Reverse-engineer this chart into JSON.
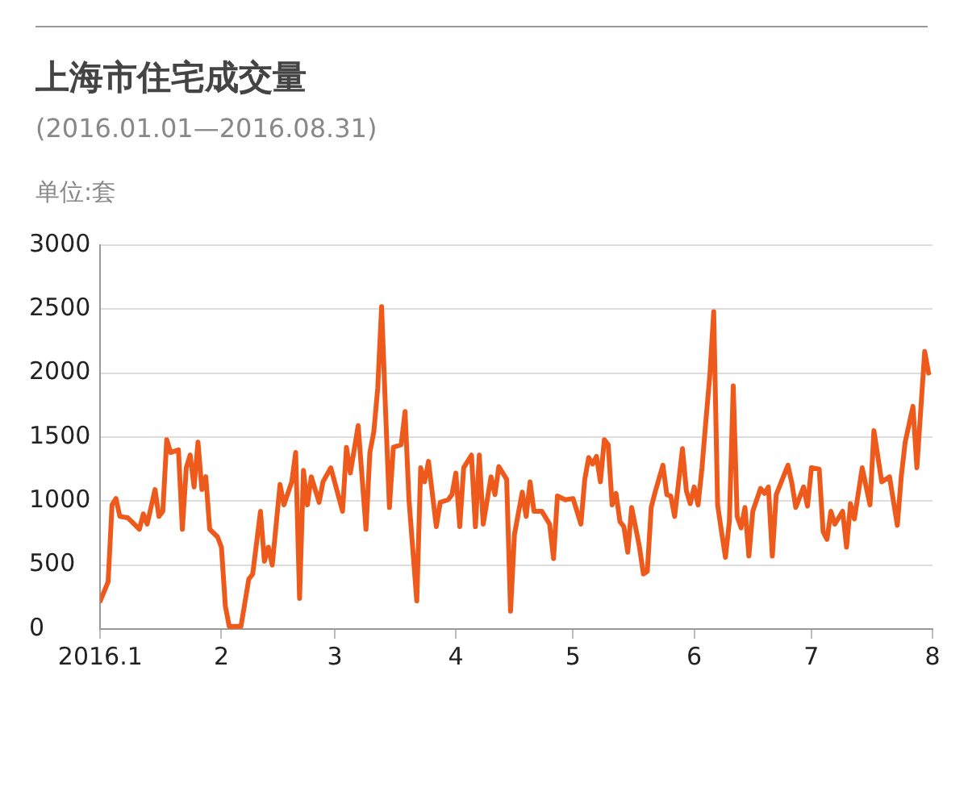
{
  "chart_data": {
    "type": "line",
    "title": "上海市住宅成交量",
    "subtitle": "(2016.01.01—2016.08.31)",
    "ylabel": "单位:套",
    "x": [
      "2016-01-01",
      "2016-01-03",
      "2016-01-04",
      "2016-01-05",
      "2016-01-06",
      "2016-01-08",
      "2016-01-09",
      "2016-01-11",
      "2016-01-12",
      "2016-01-13",
      "2016-01-15",
      "2016-01-16",
      "2016-01-17",
      "2016-01-18",
      "2016-01-19",
      "2016-01-21",
      "2016-01-22",
      "2016-01-23",
      "2016-01-24",
      "2016-01-25",
      "2016-01-26",
      "2016-01-27",
      "2016-01-28",
      "2016-01-29",
      "2016-01-31",
      "2016-02-01",
      "2016-02-02",
      "2016-02-03",
      "2016-02-06",
      "2016-02-08",
      "2016-02-09",
      "2016-02-11",
      "2016-02-12",
      "2016-02-13",
      "2016-02-14",
      "2016-02-16",
      "2016-02-17",
      "2016-02-19",
      "2016-02-20",
      "2016-02-21",
      "2016-02-22",
      "2016-02-23",
      "2016-02-24",
      "2016-02-26",
      "2016-02-27",
      "2016-02-29",
      "2016-03-03",
      "2016-03-04",
      "2016-03-05",
      "2016-03-07",
      "2016-03-09",
      "2016-03-10",
      "2016-03-11",
      "2016-03-12",
      "2016-03-13",
      "2016-03-14",
      "2016-03-15",
      "2016-03-16",
      "2016-03-18",
      "2016-03-19",
      "2016-03-20",
      "2016-03-22",
      "2016-03-23",
      "2016-03-24",
      "2016-03-25",
      "2016-03-27",
      "2016-03-28",
      "2016-03-30",
      "2016-03-31",
      "2016-04-01",
      "2016-04-02",
      "2016-04-03",
      "2016-04-05",
      "2016-04-06",
      "2016-04-07",
      "2016-04-08",
      "2016-04-10",
      "2016-04-11",
      "2016-04-12",
      "2016-04-14",
      "2016-04-15",
      "2016-04-16",
      "2016-04-18",
      "2016-04-19",
      "2016-04-20",
      "2016-04-21",
      "2016-04-23",
      "2016-04-25",
      "2016-04-26",
      "2016-04-27",
      "2016-04-29",
      "2016-05-01",
      "2016-05-03",
      "2016-05-04",
      "2016-05-05",
      "2016-05-06",
      "2016-05-07",
      "2016-05-08",
      "2016-05-09",
      "2016-05-10",
      "2016-05-11",
      "2016-05-12",
      "2016-05-13",
      "2016-05-14",
      "2016-05-15",
      "2016-05-16",
      "2016-05-18",
      "2016-05-19",
      "2016-05-20",
      "2016-05-21",
      "2016-05-22",
      "2016-05-24",
      "2016-05-25",
      "2016-05-26",
      "2016-05-27",
      "2016-05-29",
      "2016-05-30",
      "2016-05-31",
      "2016-06-01",
      "2016-06-02",
      "2016-06-03",
      "2016-06-04",
      "2016-06-05",
      "2016-06-06",
      "2016-06-07",
      "2016-06-08",
      "2016-06-09",
      "2016-06-10",
      "2016-06-11",
      "2016-06-12",
      "2016-06-13",
      "2016-06-14",
      "2016-06-15",
      "2016-06-16",
      "2016-06-18",
      "2016-06-19",
      "2016-06-20",
      "2016-06-21",
      "2016-06-22",
      "2016-06-25",
      "2016-06-26",
      "2016-06-27",
      "2016-06-29",
      "2016-06-30",
      "2016-07-01",
      "2016-07-03",
      "2016-07-04",
      "2016-07-05",
      "2016-07-06",
      "2016-07-07",
      "2016-07-09",
      "2016-07-10",
      "2016-07-11",
      "2016-07-12",
      "2016-07-14",
      "2016-07-16",
      "2016-07-17",
      "2016-07-19",
      "2016-07-21",
      "2016-07-23",
      "2016-07-24",
      "2016-07-25",
      "2016-07-27",
      "2016-07-28",
      "2016-07-30",
      "2016-07-31"
    ],
    "values": [
      220,
      370,
      970,
      1020,
      880,
      870,
      840,
      780,
      900,
      820,
      1090,
      880,
      920,
      1480,
      1380,
      1400,
      780,
      1260,
      1360,
      1110,
      1460,
      1090,
      1190,
      780,
      720,
      640,
      180,
      20,
      20,
      390,
      430,
      920,
      530,
      640,
      500,
      1130,
      970,
      1150,
      1380,
      240,
      1240,
      970,
      1190,
      990,
      1150,
      1260,
      920,
      1420,
      1220,
      1590,
      780,
      1380,
      1540,
      1880,
      2520,
      1710,
      950,
      1420,
      1440,
      1700,
      1010,
      220,
      1260,
      1150,
      1310,
      800,
      990,
      1010,
      1050,
      1220,
      800,
      1260,
      1360,
      800,
      1360,
      820,
      1190,
      1050,
      1270,
      1170,
      140,
      740,
      1070,
      880,
      1150,
      920,
      920,
      820,
      550,
      1040,
      1010,
      1020,
      820,
      1170,
      1340,
      1290,
      1350,
      1150,
      1480,
      1440,
      970,
      1060,
      840,
      800,
      600,
      950,
      640,
      430,
      450,
      950,
      1070,
      1280,
      1050,
      1040,
      880,
      1410,
      1080,
      980,
      1110,
      970,
      1260,
      1630,
      1980,
      2480,
      970,
      760,
      560,
      840,
      1900,
      880,
      790,
      950,
      570,
      920,
      1100,
      1060,
      1110,
      570,
      1050,
      1280,
      1140,
      950,
      1110,
      960,
      1260,
      1250,
      760,
      700,
      920,
      820,
      920,
      640,
      980,
      860,
      1260,
      970,
      1550,
      1150,
      1190,
      810,
      1190,
      1460,
      1740,
      1260,
      2170,
      2000
    ],
    "color": "#ee5a1c",
    "xlim": [
      "2016-01-01",
      "2016-08-01"
    ],
    "xticks": [
      {
        "value": "2016-01-01",
        "label": "2016.1"
      },
      {
        "value": "2016-02-01",
        "label": "2"
      },
      {
        "value": "2016-03-01",
        "label": "3"
      },
      {
        "value": "2016-04-01",
        "label": "4"
      },
      {
        "value": "2016-05-01",
        "label": "5"
      },
      {
        "value": "2016-06-01",
        "label": "6"
      },
      {
        "value": "2016-07-01",
        "label": "7"
      },
      {
        "value": "2016-08-01",
        "label": "8"
      }
    ],
    "ylim": [
      0,
      3000
    ],
    "yticks": [
      0,
      500,
      1000,
      1500,
      2000,
      2500,
      3000
    ],
    "grid": "y",
    "marker": "none",
    "line_style": "solid"
  }
}
